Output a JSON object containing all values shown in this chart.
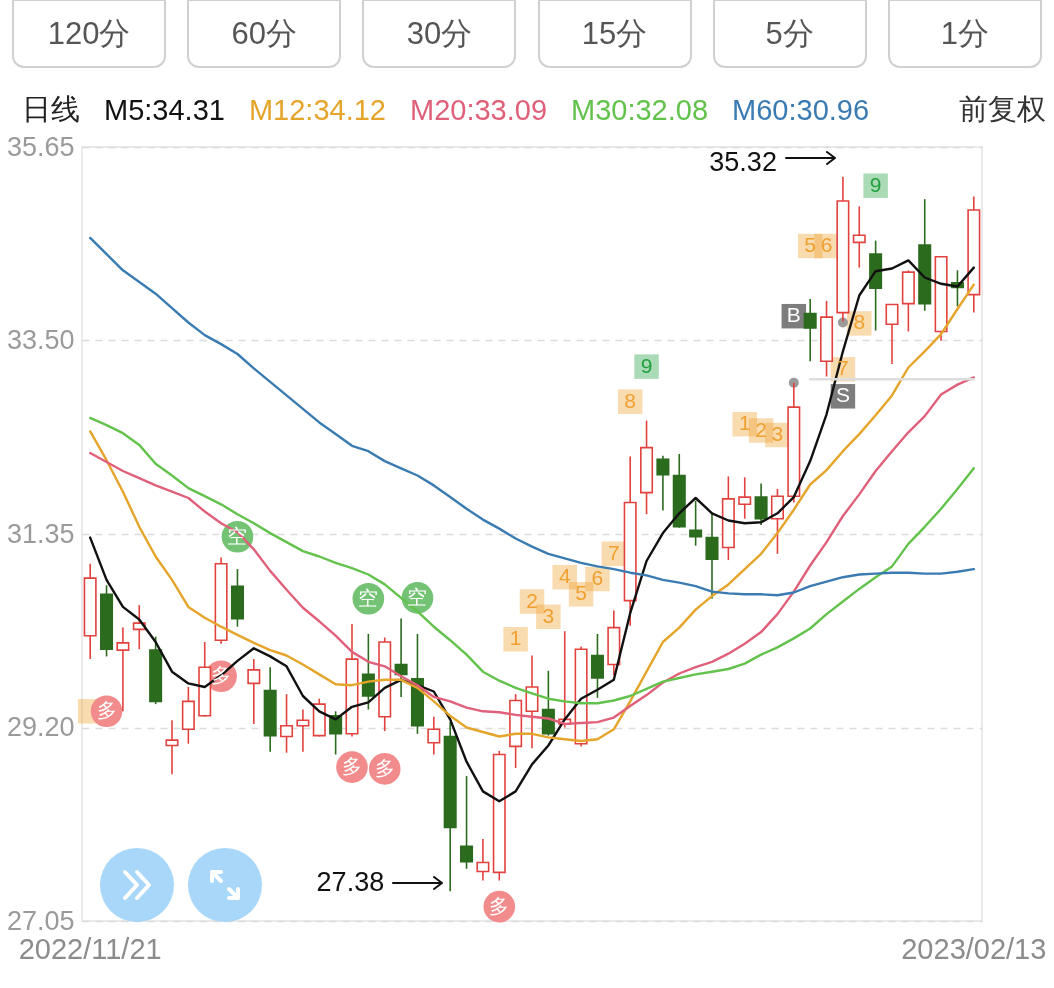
{
  "chart_data": {
    "type": "candlestick",
    "categories": [
      "2022/11/21",
      null,
      null,
      null,
      null,
      null,
      null,
      null,
      null,
      null,
      null,
      null,
      null,
      null,
      null,
      null,
      null,
      null,
      null,
      null,
      null,
      null,
      null,
      null,
      null,
      null,
      null,
      null,
      null,
      null,
      null,
      null,
      null,
      null,
      null,
      null,
      null,
      null,
      null,
      null,
      null,
      null,
      null,
      null,
      null,
      null,
      null,
      null,
      null,
      null,
      null,
      null,
      null,
      null,
      "2023/02/13"
    ],
    "ohlc": [
      [
        30.22,
        31.02,
        29.96,
        30.86
      ],
      [
        30.68,
        30.78,
        29.99,
        30.07
      ],
      [
        30.06,
        30.31,
        29.38,
        30.14
      ],
      [
        30.29,
        30.56,
        30.07,
        30.36
      ],
      [
        30.06,
        30.21,
        29.46,
        29.49
      ],
      [
        29.0,
        29.28,
        28.68,
        29.06
      ],
      [
        29.18,
        29.65,
        29.02,
        29.49
      ],
      [
        29.33,
        30.15,
        29.32,
        29.87
      ],
      [
        30.17,
        31.09,
        30.13,
        31.02
      ],
      [
        30.77,
        30.96,
        30.32,
        30.41
      ],
      [
        29.69,
        29.96,
        29.24,
        29.84
      ],
      [
        29.61,
        29.87,
        28.93,
        29.11
      ],
      [
        29.1,
        29.57,
        28.92,
        29.22
      ],
      [
        29.22,
        29.4,
        28.93,
        29.28
      ],
      [
        29.11,
        29.52,
        29.1,
        29.46
      ],
      [
        29.33,
        29.38,
        28.9,
        29.13
      ],
      [
        29.13,
        30.35,
        29.1,
        29.96
      ],
      [
        29.79,
        30.24,
        29.4,
        29.55
      ],
      [
        29.32,
        30.2,
        29.16,
        30.15
      ],
      [
        29.9,
        30.41,
        29.54,
        29.79
      ],
      [
        29.74,
        30.24,
        29.13,
        29.22
      ],
      [
        29.03,
        29.32,
        28.9,
        29.18
      ],
      [
        29.1,
        29.26,
        27.38,
        28.09
      ],
      [
        27.88,
        28.66,
        27.63,
        27.71
      ],
      [
        27.6,
        27.96,
        27.5,
        27.7
      ],
      [
        27.59,
        28.94,
        27.5,
        28.9
      ],
      [
        28.99,
        29.57,
        28.75,
        29.5
      ],
      [
        29.38,
        30.0,
        28.97,
        29.65
      ],
      [
        29.4,
        29.83,
        29.11,
        29.13
      ],
      [
        29.24,
        30.27,
        29.2,
        29.29
      ],
      [
        29.02,
        30.1,
        28.99,
        30.07
      ],
      [
        30.0,
        30.24,
        29.53,
        29.75
      ],
      [
        29.9,
        30.5,
        29.78,
        30.31
      ],
      [
        30.61,
        32.21,
        30.33,
        31.7
      ],
      [
        31.81,
        32.61,
        31.57,
        32.31
      ],
      [
        32.18,
        32.22,
        31.61,
        32.01
      ],
      [
        32.0,
        32.24,
        31.42,
        31.43
      ],
      [
        31.39,
        31.72,
        31.22,
        31.32
      ],
      [
        31.31,
        31.59,
        30.63,
        31.07
      ],
      [
        31.2,
        31.99,
        31.06,
        31.74
      ],
      [
        31.68,
        31.98,
        31.52,
        31.76
      ],
      [
        31.76,
        31.91,
        31.45,
        31.52
      ],
      [
        31.52,
        31.85,
        31.13,
        31.77
      ],
      [
        31.77,
        33.03,
        31.7,
        32.76
      ],
      [
        33.8,
        33.96,
        33.27,
        33.64
      ],
      [
        33.27,
        33.94,
        33.1,
        33.76
      ],
      [
        33.81,
        35.32,
        33.71,
        35.05
      ],
      [
        34.59,
        34.99,
        34.31,
        34.67
      ],
      [
        34.46,
        34.61,
        33.61,
        34.08
      ],
      [
        33.68,
        33.9,
        33.24,
        33.9
      ],
      [
        33.91,
        34.28,
        33.6,
        34.26
      ],
      [
        34.56,
        35.07,
        33.83,
        33.91
      ],
      [
        33.6,
        34.44,
        33.5,
        34.43
      ],
      [
        34.14,
        34.28,
        33.88,
        34.09
      ],
      [
        34.01,
        35.1,
        33.81,
        34.95
      ]
    ],
    "colors": [
      "#e2423d",
      "#2b6b1e",
      "#e2423d",
      "#e2423d",
      "#2b6b1e",
      "#e2423d",
      "#e2423d",
      "#e2423d",
      "#e2423d",
      "#2b6b1e",
      "#e2423d",
      "#2b6b1e",
      "#e2423d",
      "#e2423d",
      "#e2423d",
      "#2b6b1e",
      "#e2423d",
      "#2b6b1e",
      "#e2423d",
      "#2b6b1e",
      "#2b6b1e",
      "#e2423d",
      "#2b6b1e",
      "#2b6b1e",
      "#e2423d",
      "#e2423d",
      "#e2423d",
      "#e2423d",
      "#2b6b1e",
      "#e2423d",
      "#e2423d",
      "#2b6b1e",
      "#e2423d",
      "#e2423d",
      "#e2423d",
      "#2b6b1e",
      "#2b6b1e",
      "#2b6b1e",
      "#2b6b1e",
      "#e2423d",
      "#e2423d",
      "#2b6b1e",
      "#e2423d",
      "#e2423d",
      "#2b6b1e",
      "#e2423d",
      "#e2423d",
      "#e2423d",
      "#2b6b1e",
      "#e2423d",
      "#e2423d",
      "#2b6b1e",
      "#e2423d",
      "#2b6b1e",
      "#e2423d"
    ],
    "series": [
      {
        "name": "M5:34.31",
        "type": "line",
        "color": "#111111",
        "values": [
          31.31,
          30.84,
          30.54,
          30.4,
          30.15,
          29.82,
          29.69,
          29.65,
          29.78,
          29.94,
          30.08,
          29.99,
          29.88,
          29.55,
          29.38,
          29.29,
          29.43,
          29.48,
          29.64,
          29.73,
          29.67,
          29.6,
          29.29,
          28.82,
          28.49,
          28.38,
          28.49,
          28.79,
          29.0,
          29.29,
          29.52,
          29.62,
          29.73,
          30.47,
          31.05,
          31.36,
          31.58,
          31.75,
          31.58,
          31.5,
          31.47,
          31.48,
          31.58,
          31.76,
          32.16,
          32.68,
          33.38,
          34.0,
          34.27,
          34.3,
          34.39,
          34.2,
          34.13,
          34.1,
          34.31
        ]
      },
      {
        "name": "M12:34.12",
        "type": "line",
        "color": "#e5a42a",
        "values": [
          32.49,
          32.17,
          31.82,
          31.43,
          31.1,
          30.84,
          30.54,
          30.42,
          30.32,
          30.23,
          30.14,
          30.06,
          30.0,
          29.9,
          29.79,
          29.68,
          29.67,
          29.71,
          29.73,
          29.73,
          29.64,
          29.49,
          29.33,
          29.2,
          29.15,
          29.1,
          29.13,
          29.13,
          29.09,
          29.07,
          29.05,
          29.07,
          29.18,
          29.49,
          29.82,
          30.15,
          30.31,
          30.51,
          30.66,
          30.79,
          30.96,
          31.13,
          31.36,
          31.62,
          31.9,
          32.06,
          32.27,
          32.46,
          32.67,
          32.89,
          33.2,
          33.38,
          33.57,
          33.85,
          34.12
        ]
      },
      {
        "name": "M20:33.09",
        "type": "line",
        "color": "#e0607a",
        "values": [
          32.25,
          32.15,
          32.05,
          31.97,
          31.89,
          31.82,
          31.75,
          31.6,
          31.47,
          31.37,
          31.18,
          30.94,
          30.73,
          30.53,
          30.38,
          30.22,
          30.04,
          29.93,
          29.88,
          29.77,
          29.67,
          29.54,
          29.49,
          29.42,
          29.38,
          29.37,
          29.34,
          29.32,
          29.3,
          29.24,
          29.25,
          29.26,
          29.31,
          29.44,
          29.56,
          29.7,
          29.8,
          29.87,
          29.93,
          30.02,
          30.13,
          30.26,
          30.46,
          30.71,
          31.0,
          31.26,
          31.55,
          31.79,
          32.05,
          32.27,
          32.48,
          32.66,
          32.9,
          33.01,
          33.09
        ]
      },
      {
        "name": "M30:32.08",
        "type": "line",
        "color": "#62c24c",
        "values": [
          32.64,
          32.56,
          32.47,
          32.34,
          32.13,
          32.0,
          31.86,
          31.77,
          31.68,
          31.57,
          31.47,
          31.36,
          31.26,
          31.16,
          31.1,
          31.03,
          30.97,
          30.9,
          30.79,
          30.64,
          30.49,
          30.32,
          30.17,
          30.01,
          29.82,
          29.72,
          29.64,
          29.58,
          29.52,
          29.49,
          29.47,
          29.47,
          29.5,
          29.55,
          29.63,
          29.71,
          29.75,
          29.79,
          29.82,
          29.85,
          29.91,
          30.01,
          30.09,
          30.19,
          30.3,
          30.46,
          30.6,
          30.74,
          30.87,
          30.99,
          31.24,
          31.43,
          31.63,
          31.85,
          32.08
        ]
      },
      {
        "name": "M60:30.96",
        "type": "line",
        "color": "#3a7bb2",
        "values": [
          34.64,
          34.46,
          34.28,
          34.15,
          34.02,
          33.86,
          33.7,
          33.56,
          33.46,
          33.35,
          33.19,
          33.04,
          32.89,
          32.74,
          32.59,
          32.46,
          32.33,
          32.27,
          32.16,
          32.08,
          32.0,
          31.89,
          31.76,
          31.63,
          31.51,
          31.41,
          31.3,
          31.21,
          31.13,
          31.08,
          31.03,
          30.99,
          30.96,
          30.92,
          30.89,
          30.84,
          30.81,
          30.77,
          30.71,
          30.69,
          30.68,
          30.68,
          30.67,
          30.7,
          30.77,
          30.82,
          30.87,
          30.9,
          30.91,
          30.92,
          30.92,
          30.91,
          30.91,
          30.93,
          30.96
        ]
      },
      {
        "type": "line",
        "color": "#dddddd",
        "values": [
          null,
          null,
          null,
          null,
          null,
          null,
          null,
          null,
          null,
          null,
          null,
          null,
          null,
          null,
          null,
          null,
          null,
          null,
          null,
          null,
          null,
          null,
          null,
          null,
          null,
          null,
          null,
          null,
          null,
          null,
          null,
          null,
          null,
          null,
          null,
          null,
          null,
          null,
          null,
          null,
          null,
          null,
          null,
          null,
          33.07,
          33.07,
          33.07,
          33.07,
          33.07,
          33.07,
          33.07,
          33.07,
          33.07,
          33.07,
          33.07
        ]
      },
      {
        "type": "scatter",
        "marker": "square",
        "color": "#f0a030",
        "values": [
          29.38,
          null,
          null,
          null,
          null,
          null,
          null,
          null,
          null,
          null,
          null,
          null,
          null,
          null,
          null,
          null,
          null,
          null,
          null,
          null,
          null,
          null,
          null,
          null,
          null,
          null,
          null,
          null,
          null,
          null,
          null,
          null,
          null,
          null,
          null,
          null,
          null,
          null,
          null,
          null,
          null,
          null,
          null,
          null,
          null,
          null,
          null,
          null,
          null,
          null,
          null,
          null,
          null,
          null,
          null
        ]
      },
      {
        "name": "1",
        "type": "scatter",
        "marker": "square",
        "color": "#f0a030",
        "values": [
          null,
          null,
          null,
          null,
          null,
          null,
          null,
          null,
          null,
          null,
          null,
          null,
          null,
          null,
          null,
          null,
          null,
          null,
          null,
          null,
          null,
          null,
          null,
          null,
          null,
          null,
          30.18,
          null,
          null,
          null,
          null,
          null,
          null,
          null,
          null,
          null,
          null,
          null,
          null,
          null,
          32.57,
          null,
          null,
          null,
          null,
          null,
          null,
          null,
          null,
          null,
          null,
          null,
          null,
          null,
          null
        ]
      },
      {
        "name": "2",
        "type": "scatter",
        "marker": "square",
        "color": "#f0a030",
        "values": [
          null,
          null,
          null,
          null,
          null,
          null,
          null,
          null,
          null,
          null,
          null,
          null,
          null,
          null,
          null,
          null,
          null,
          null,
          null,
          null,
          null,
          null,
          null,
          null,
          null,
          null,
          null,
          30.6,
          null,
          null,
          null,
          null,
          null,
          null,
          null,
          null,
          null,
          null,
          null,
          null,
          null,
          32.5,
          null,
          null,
          null,
          null,
          null,
          null,
          null,
          null,
          null,
          null,
          null,
          null,
          null
        ]
      },
      {
        "name": "3",
        "type": "scatter",
        "marker": "square",
        "color": "#f0a030",
        "values": [
          null,
          null,
          null,
          null,
          null,
          null,
          null,
          null,
          null,
          null,
          null,
          null,
          null,
          null,
          null,
          null,
          null,
          null,
          null,
          null,
          null,
          null,
          null,
          null,
          null,
          null,
          null,
          null,
          30.43,
          null,
          null,
          null,
          null,
          null,
          null,
          null,
          null,
          null,
          null,
          null,
          null,
          null,
          32.45,
          null,
          null,
          null,
          null,
          null,
          null,
          null,
          null,
          null,
          null,
          null,
          null
        ]
      },
      {
        "name": "4",
        "type": "scatter",
        "marker": "square",
        "color": "#f0a030",
        "values": [
          null,
          null,
          null,
          null,
          null,
          null,
          null,
          null,
          null,
          null,
          null,
          null,
          null,
          null,
          null,
          null,
          null,
          null,
          null,
          null,
          null,
          null,
          null,
          null,
          null,
          null,
          null,
          null,
          null,
          30.87,
          null,
          null,
          null,
          null,
          null,
          null,
          null,
          null,
          null,
          null,
          null,
          null,
          null,
          null,
          null,
          null,
          null,
          null,
          null,
          null,
          null,
          null,
          null,
          null,
          null
        ]
      },
      {
        "name": "5",
        "type": "scatter",
        "marker": "square",
        "color": "#f0a030",
        "values": [
          null,
          null,
          null,
          null,
          null,
          null,
          null,
          null,
          null,
          null,
          null,
          null,
          null,
          null,
          null,
          null,
          null,
          null,
          null,
          null,
          null,
          null,
          null,
          null,
          null,
          null,
          null,
          null,
          null,
          null,
          30.68,
          null,
          null,
          null,
          null,
          null,
          null,
          null,
          null,
          null,
          null,
          null,
          null,
          null,
          34.55,
          null,
          null,
          null,
          null,
          null,
          null,
          null,
          null,
          null,
          null
        ]
      },
      {
        "name": "6",
        "type": "scatter",
        "marker": "square",
        "color": "#f0a030",
        "values": [
          null,
          null,
          null,
          null,
          null,
          null,
          null,
          null,
          null,
          null,
          null,
          null,
          null,
          null,
          null,
          null,
          null,
          null,
          null,
          null,
          null,
          null,
          null,
          null,
          null,
          null,
          null,
          null,
          null,
          null,
          null,
          30.85,
          null,
          null,
          null,
          null,
          null,
          null,
          null,
          null,
          null,
          null,
          null,
          null,
          null,
          34.55,
          null,
          null,
          null,
          null,
          null,
          null,
          null,
          null,
          null
        ]
      },
      {
        "name": "7",
        "type": "scatter",
        "marker": "square",
        "color": "#f0a030",
        "values": [
          null,
          null,
          null,
          null,
          null,
          null,
          null,
          null,
          null,
          null,
          null,
          null,
          null,
          null,
          null,
          null,
          null,
          null,
          null,
          null,
          null,
          null,
          null,
          null,
          null,
          null,
          null,
          null,
          null,
          null,
          null,
          null,
          31.13,
          null,
          null,
          null,
          null,
          null,
          null,
          null,
          null,
          null,
          null,
          null,
          null,
          null,
          33.18,
          null,
          null,
          null,
          null,
          null,
          null,
          null,
          null
        ]
      },
      {
        "name": "8",
        "type": "scatter",
        "marker": "square",
        "color": "#f0a030",
        "values": [
          null,
          null,
          null,
          null,
          null,
          null,
          null,
          null,
          null,
          null,
          null,
          null,
          null,
          null,
          null,
          null,
          null,
          null,
          null,
          null,
          null,
          null,
          null,
          null,
          null,
          null,
          null,
          null,
          null,
          null,
          null,
          null,
          null,
          32.82,
          null,
          null,
          null,
          null,
          null,
          null,
          null,
          null,
          null,
          null,
          null,
          null,
          null,
          33.69,
          null,
          null,
          null,
          null,
          null,
          null,
          null
        ]
      },
      {
        "name": "9",
        "type": "scatter",
        "marker": "square",
        "color": "#22a03f",
        "values": [
          null,
          null,
          null,
          null,
          null,
          null,
          null,
          null,
          null,
          null,
          null,
          null,
          null,
          null,
          null,
          null,
          null,
          null,
          null,
          null,
          null,
          null,
          null,
          null,
          null,
          null,
          null,
          null,
          null,
          null,
          null,
          null,
          null,
          null,
          33.21,
          null,
          null,
          null,
          null,
          null,
          null,
          null,
          null,
          null,
          null,
          null,
          null,
          null,
          35.22,
          null,
          null,
          null,
          null,
          null,
          null
        ]
      },
      {
        "name": "空",
        "type": "scatter",
        "marker": "circle",
        "color": "#74c274",
        "values": [
          null,
          null,
          null,
          null,
          null,
          null,
          null,
          null,
          null,
          31.32,
          null,
          null,
          null,
          null,
          null,
          null,
          null,
          30.63,
          null,
          null,
          30.64,
          null,
          null,
          null,
          null,
          null,
          null,
          null,
          null,
          null,
          null,
          null,
          null,
          null,
          null,
          null,
          null,
          null,
          null,
          null,
          null,
          null,
          null,
          null,
          null,
          null,
          null,
          null,
          null,
          null,
          null,
          null,
          null,
          null,
          null
        ]
      },
      {
        "name": "多",
        "type": "scatter",
        "marker": "circle",
        "color": "#f28b8b",
        "values": [
          null,
          29.38,
          null,
          null,
          null,
          null,
          null,
          null,
          29.77,
          null,
          null,
          null,
          null,
          null,
          null,
          null,
          28.76,
          null,
          28.74,
          null,
          null,
          null,
          null,
          null,
          null,
          27.21,
          null,
          null,
          null,
          null,
          null,
          null,
          null,
          null,
          null,
          null,
          null,
          null,
          null,
          null,
          null,
          null,
          null,
          null,
          null,
          null,
          null,
          null,
          null,
          null,
          null,
          null,
          null,
          null,
          null
        ]
      },
      {
        "name": "B",
        "type": "scatter",
        "marker": "square",
        "color": "#7d7d7d",
        "values": [
          null,
          null,
          null,
          null,
          null,
          null,
          null,
          null,
          null,
          null,
          null,
          null,
          null,
          null,
          null,
          null,
          null,
          null,
          null,
          null,
          null,
          null,
          null,
          null,
          null,
          null,
          null,
          null,
          null,
          null,
          null,
          null,
          null,
          null,
          null,
          null,
          null,
          null,
          null,
          null,
          null,
          null,
          null,
          33.77,
          null,
          null,
          null,
          null,
          null,
          null,
          null,
          null,
          null,
          null,
          null
        ]
      },
      {
        "name": "S",
        "type": "scatter",
        "marker": "square",
        "color": "#7d7d7d",
        "values": [
          null,
          null,
          null,
          null,
          null,
          null,
          null,
          null,
          null,
          null,
          null,
          null,
          null,
          null,
          null,
          null,
          null,
          null,
          null,
          null,
          null,
          null,
          null,
          null,
          null,
          null,
          null,
          null,
          null,
          null,
          null,
          null,
          null,
          null,
          null,
          null,
          null,
          null,
          null,
          null,
          null,
          null,
          null,
          null,
          null,
          null,
          32.88,
          null,
          null,
          null,
          null,
          null,
          null,
          null,
          null
        ]
      },
      {
        "type": "scatter",
        "marker": "circle",
        "color": "#9a9a9a",
        "values": [
          null,
          null,
          null,
          null,
          null,
          null,
          null,
          null,
          null,
          null,
          null,
          null,
          null,
          null,
          null,
          null,
          null,
          null,
          null,
          null,
          null,
          null,
          null,
          null,
          null,
          null,
          null,
          null,
          null,
          null,
          null,
          null,
          null,
          null,
          null,
          null,
          null,
          null,
          null,
          null,
          null,
          null,
          null,
          33.03,
          null,
          null,
          33.7,
          null,
          null,
          null,
          null,
          null,
          null,
          null,
          null
        ]
      }
    ],
    "ylim": [
      27.05,
      35.65
    ],
    "yticks": [
      35.65,
      {
        "value": 33.5,
        "label": "33.50"
      },
      31.35,
      {
        "value": 29.2,
        "label": "29.20"
      },
      27.05
    ],
    "grid": "y",
    "legend": "top",
    "annotations": [
      "120分",
      "60分",
      "30分",
      "15分",
      "5分",
      "1分",
      "日线",
      "前复权",
      "35.32",
      "27.38"
    ]
  }
}
